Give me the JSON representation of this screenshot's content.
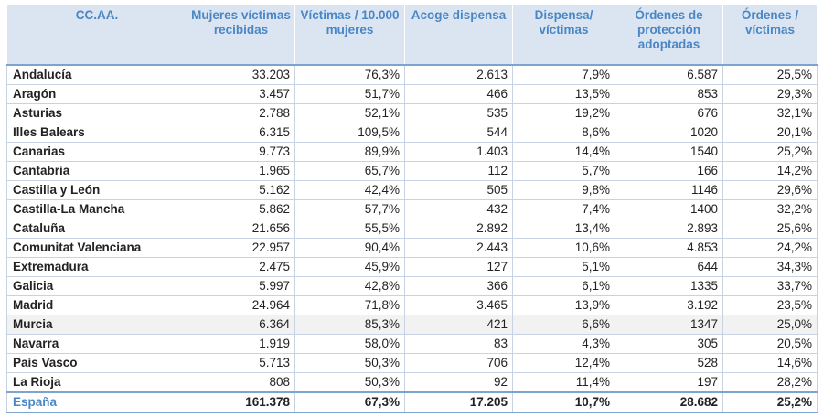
{
  "headers": [
    "CC.AA.",
    "Mujeres víctimas recibidas",
    "Víctimas / 10.000 mujeres",
    "Acoge dispensa",
    "Dispensa/ víctimas",
    "Órdenes de protección adoptadas",
    "Órdenes / víctimas"
  ],
  "rows": [
    [
      "Andalucía",
      "33.203",
      "76,3%",
      "2.613",
      "7,9%",
      "6.587",
      "25,5%"
    ],
    [
      "Aragón",
      "3.457",
      "51,7%",
      "466",
      "13,5%",
      "853",
      "29,3%"
    ],
    [
      "Asturias",
      "2.788",
      "52,1%",
      "535",
      "19,2%",
      "676",
      "32,1%"
    ],
    [
      "Illes Balears",
      "6.315",
      "109,5%",
      "544",
      "8,6%",
      "1020",
      "20,1%"
    ],
    [
      "Canarias",
      "9.773",
      "89,9%",
      "1.403",
      "14,4%",
      "1540",
      "25,2%"
    ],
    [
      "Cantabria",
      "1.965",
      "65,7%",
      "112",
      "5,7%",
      "166",
      "14,2%"
    ],
    [
      "Castilla y León",
      "5.162",
      "42,4%",
      "505",
      "9,8%",
      "1146",
      "29,6%"
    ],
    [
      "Castilla-La Mancha",
      "5.862",
      "57,7%",
      "432",
      "7,4%",
      "1400",
      "32,2%"
    ],
    [
      "Cataluña",
      "21.656",
      "55,5%",
      "2.892",
      "13,4%",
      "2.893",
      "25,6%"
    ],
    [
      "Comunitat Valenciana",
      "22.957",
      "90,4%",
      "2.443",
      "10,6%",
      "4.853",
      "24,2%"
    ],
    [
      "Extremadura",
      "2.475",
      "45,9%",
      "127",
      "5,1%",
      "644",
      "34,3%"
    ],
    [
      "Galicia",
      "5.997",
      "42,8%",
      "366",
      "6,1%",
      "1335",
      "33,7%"
    ],
    [
      "Madrid",
      "24.964",
      "71,8%",
      "3.465",
      "13,9%",
      "3.192",
      "23,5%"
    ],
    [
      "Murcia",
      "6.364",
      "85,3%",
      "421",
      "6,6%",
      "1347",
      "25,0%"
    ],
    [
      "Navarra",
      "1.919",
      "58,0%",
      "83",
      "4,3%",
      "305",
      "20,5%"
    ],
    [
      "País Vasco",
      "5.713",
      "50,3%",
      "706",
      "12,4%",
      "528",
      "14,6%"
    ],
    [
      "La Rioja",
      "808",
      "50,3%",
      "92",
      "11,4%",
      "197",
      "28,2%"
    ]
  ],
  "total": [
    "España",
    "161.378",
    "67,3%",
    "17.205",
    "10,7%",
    "28.682",
    "25,2%"
  ],
  "highlight_row": "Murcia"
}
